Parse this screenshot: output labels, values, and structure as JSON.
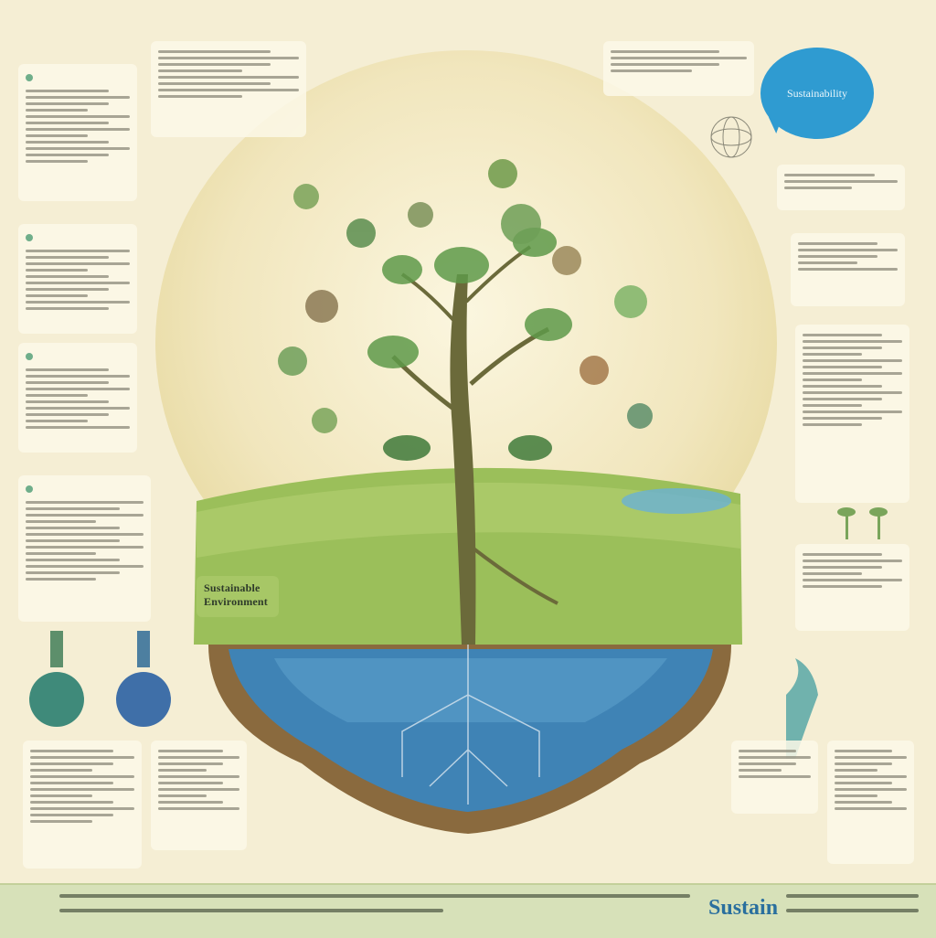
{
  "bubble": {
    "text": "Sustainability"
  },
  "center_panel": {
    "title": "Sustainable Environment"
  },
  "footer": {
    "logo": "Sustain"
  },
  "colors": {
    "background": "#f5eed4",
    "bubble": "#2f9bd1",
    "grass": "#9bbf5a",
    "water": "#3f83b5",
    "soil": "#8a6a3e",
    "trunk": "#6b6a3a",
    "leaf": "#5f9a4a",
    "footer": "#d7e1b9"
  },
  "icons": [
    "tree-icon",
    "flask-icon",
    "plant-icon",
    "globe-icon",
    "leaf-icon"
  ]
}
